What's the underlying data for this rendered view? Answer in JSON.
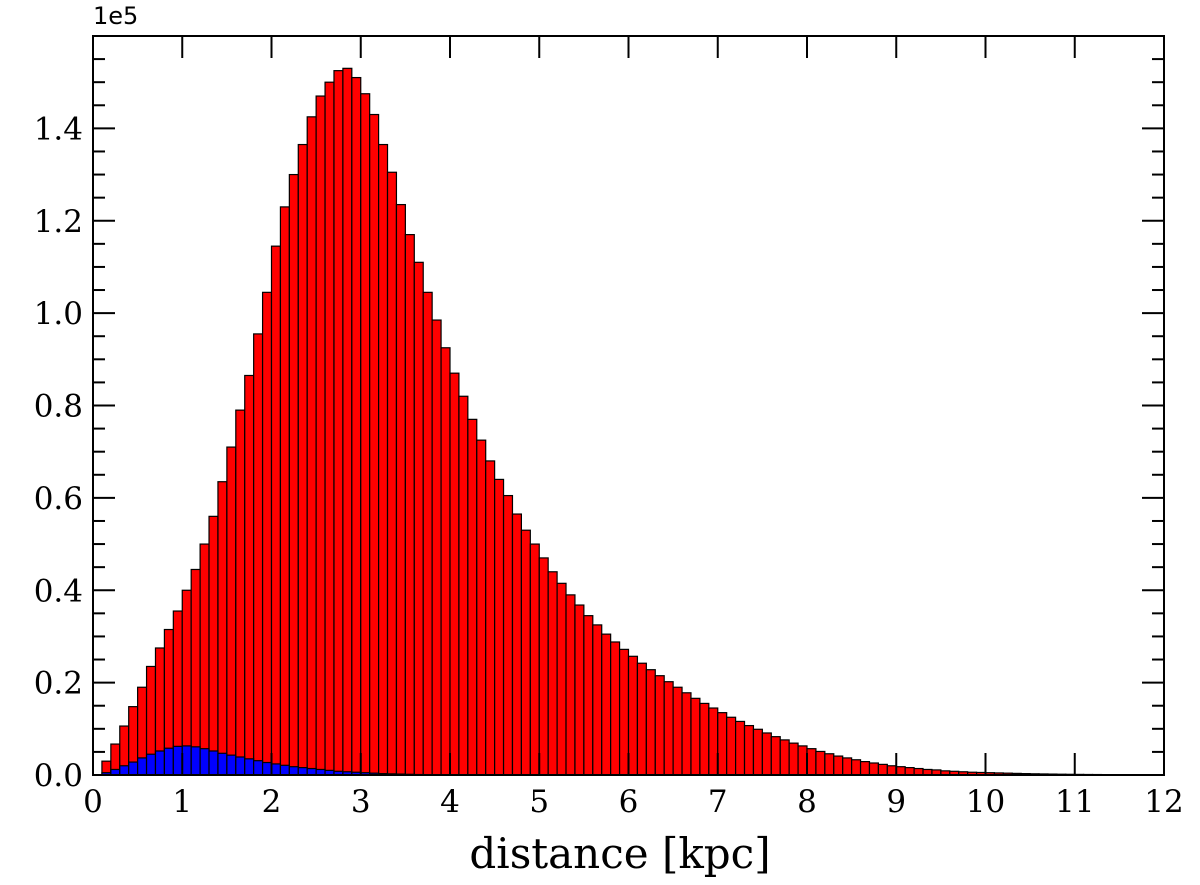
{
  "chart_data": {
    "type": "bar",
    "xlabel": "distance [kpc]",
    "ylabel": "",
    "y_offset_label": "1e5",
    "xlim": [
      0,
      12
    ],
    "ylim": [
      0,
      1.6
    ],
    "bin_start": 0.1,
    "bin_width": 0.1,
    "x_ticks": [
      "0",
      "1",
      "2",
      "3",
      "4",
      "5",
      "6",
      "7",
      "8",
      "9",
      "10",
      "11",
      "12"
    ],
    "y_ticks": [
      "0.0",
      "0.2",
      "0.4",
      "0.6",
      "0.8",
      "1.0",
      "1.2",
      "1.4"
    ],
    "grid": false,
    "series": [
      {
        "color": "#ff0000",
        "values": [
          0.03,
          0.067,
          0.106,
          0.148,
          0.19,
          0.235,
          0.275,
          0.315,
          0.355,
          0.4,
          0.445,
          0.5,
          0.56,
          0.635,
          0.71,
          0.79,
          0.865,
          0.955,
          1.045,
          1.145,
          1.23,
          1.3,
          1.365,
          1.425,
          1.47,
          1.5,
          1.525,
          1.53,
          1.51,
          1.475,
          1.43,
          1.365,
          1.305,
          1.235,
          1.17,
          1.11,
          1.045,
          0.985,
          0.925,
          0.87,
          0.82,
          0.77,
          0.725,
          0.68,
          0.64,
          0.605,
          0.565,
          0.53,
          0.5,
          0.47,
          0.44,
          0.415,
          0.39,
          0.368,
          0.345,
          0.325,
          0.305,
          0.288,
          0.272,
          0.257,
          0.242,
          0.228,
          0.215,
          0.202,
          0.19,
          0.178,
          0.166,
          0.155,
          0.145,
          0.135,
          0.125,
          0.116,
          0.107,
          0.099,
          0.091,
          0.083,
          0.076,
          0.069,
          0.063,
          0.057,
          0.051,
          0.046,
          0.041,
          0.037,
          0.033,
          0.029,
          0.026,
          0.023,
          0.02,
          0.018,
          0.016,
          0.014,
          0.012,
          0.011,
          0.009,
          0.008,
          0.007,
          0.006,
          0.0055,
          0.005,
          0.0045,
          0.004,
          0.0035,
          0.003,
          0.0026,
          0.0023,
          0.002,
          0.0017,
          0.0015,
          0.0013,
          0.0011,
          0.001,
          0.0008,
          0.0007,
          0.0006,
          0.0005
        ]
      },
      {
        "color": "#0000ff",
        "values": [
          0.005,
          0.012,
          0.02,
          0.028,
          0.037,
          0.045,
          0.052,
          0.058,
          0.062,
          0.063,
          0.061,
          0.057,
          0.052,
          0.047,
          0.043,
          0.039,
          0.035,
          0.031,
          0.027,
          0.024,
          0.021,
          0.018,
          0.016,
          0.014,
          0.012,
          0.01,
          0.008,
          0.007,
          0.006,
          0.005,
          0.004,
          0.003,
          0.0025,
          0.002,
          0.0015,
          0.001,
          0.0008,
          0.0006,
          0.0004,
          0.0003
        ]
      }
    ]
  }
}
